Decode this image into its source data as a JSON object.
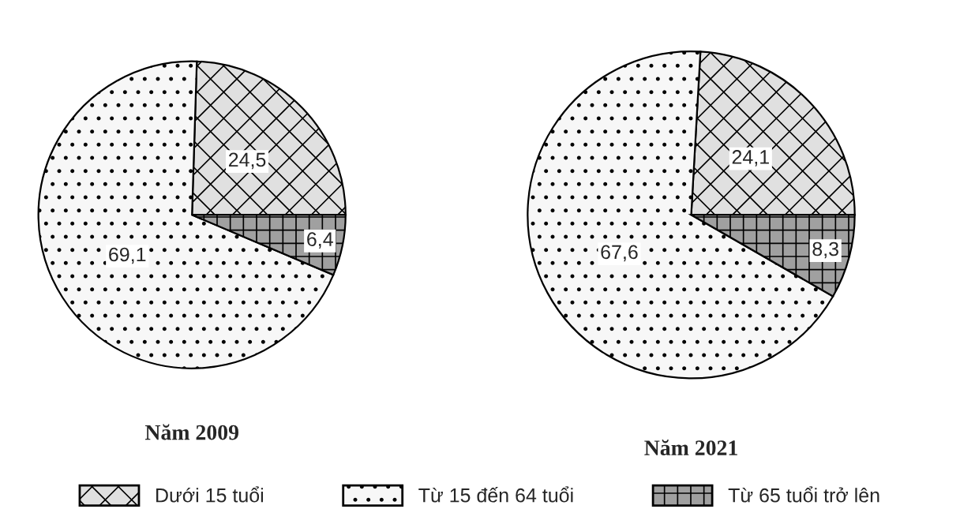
{
  "chart_data": [
    {
      "type": "pie",
      "title": "Năm 2009",
      "categories": [
        "Dưới 15 tuổi",
        "Từ 15 đến 64 tuổi",
        "Từ 65 tuổi trở lên"
      ],
      "values": [
        24.5,
        69.1,
        6.4
      ],
      "value_labels": [
        "24,5",
        "69,1",
        "6,4"
      ],
      "colors": [
        "#e0e0e0",
        "#f7f7f7",
        "#a0a0a0"
      ],
      "legend": "bottom"
    },
    {
      "type": "pie",
      "title": "Năm 2021",
      "categories": [
        null,
        null,
        null
      ],
      "values": [
        24.1,
        67.6,
        8.3
      ],
      "value_labels": [
        "24,1",
        "67,6",
        "8,3"
      ],
      "colors": [
        "#e0e0e0",
        "#f7f7f7",
        "#a0a0a0"
      ]
    }
  ]
}
